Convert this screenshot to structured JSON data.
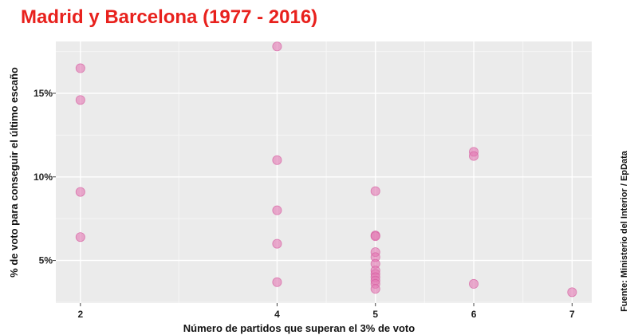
{
  "chart_data": {
    "type": "scatter",
    "title": "Madrid y Barcelona (1977 - 2016)",
    "xlabel": "Número de partidos que superan el 3% de voto",
    "ylabel": "% de voto para conseguir el último escaño",
    "source": "Fuente: Ministerio del Interior / EpData",
    "x_ticks": [
      2,
      4,
      5,
      6,
      7
    ],
    "x_tick_labels": [
      "2",
      "4",
      "5",
      "6",
      "7"
    ],
    "y_ticks": [
      5,
      10,
      15
    ],
    "y_tick_labels": [
      "5%",
      "10%",
      "15%"
    ],
    "point_color": "#e377b3",
    "grid": true,
    "points": [
      {
        "x": 2,
        "y": 16.5
      },
      {
        "x": 2,
        "y": 14.6
      },
      {
        "x": 2,
        "y": 9.1
      },
      {
        "x": 2,
        "y": 6.4
      },
      {
        "x": 4,
        "y": 17.8
      },
      {
        "x": 4,
        "y": 11.0
      },
      {
        "x": 4,
        "y": 8.0
      },
      {
        "x": 4,
        "y": 6.0
      },
      {
        "x": 4,
        "y": 3.7
      },
      {
        "x": 5,
        "y": 9.15
      },
      {
        "x": 5,
        "y": 6.5
      },
      {
        "x": 5,
        "y": 6.45
      },
      {
        "x": 5,
        "y": 5.5
      },
      {
        "x": 5,
        "y": 5.2
      },
      {
        "x": 5,
        "y": 4.8
      },
      {
        "x": 5,
        "y": 4.4
      },
      {
        "x": 5,
        "y": 4.2
      },
      {
        "x": 5,
        "y": 4.0
      },
      {
        "x": 5,
        "y": 3.8
      },
      {
        "x": 5,
        "y": 3.6
      },
      {
        "x": 5,
        "y": 3.3
      },
      {
        "x": 6,
        "y": 11.5
      },
      {
        "x": 6,
        "y": 11.25
      },
      {
        "x": 6,
        "y": 3.6
      },
      {
        "x": 7,
        "y": 3.1
      }
    ]
  }
}
